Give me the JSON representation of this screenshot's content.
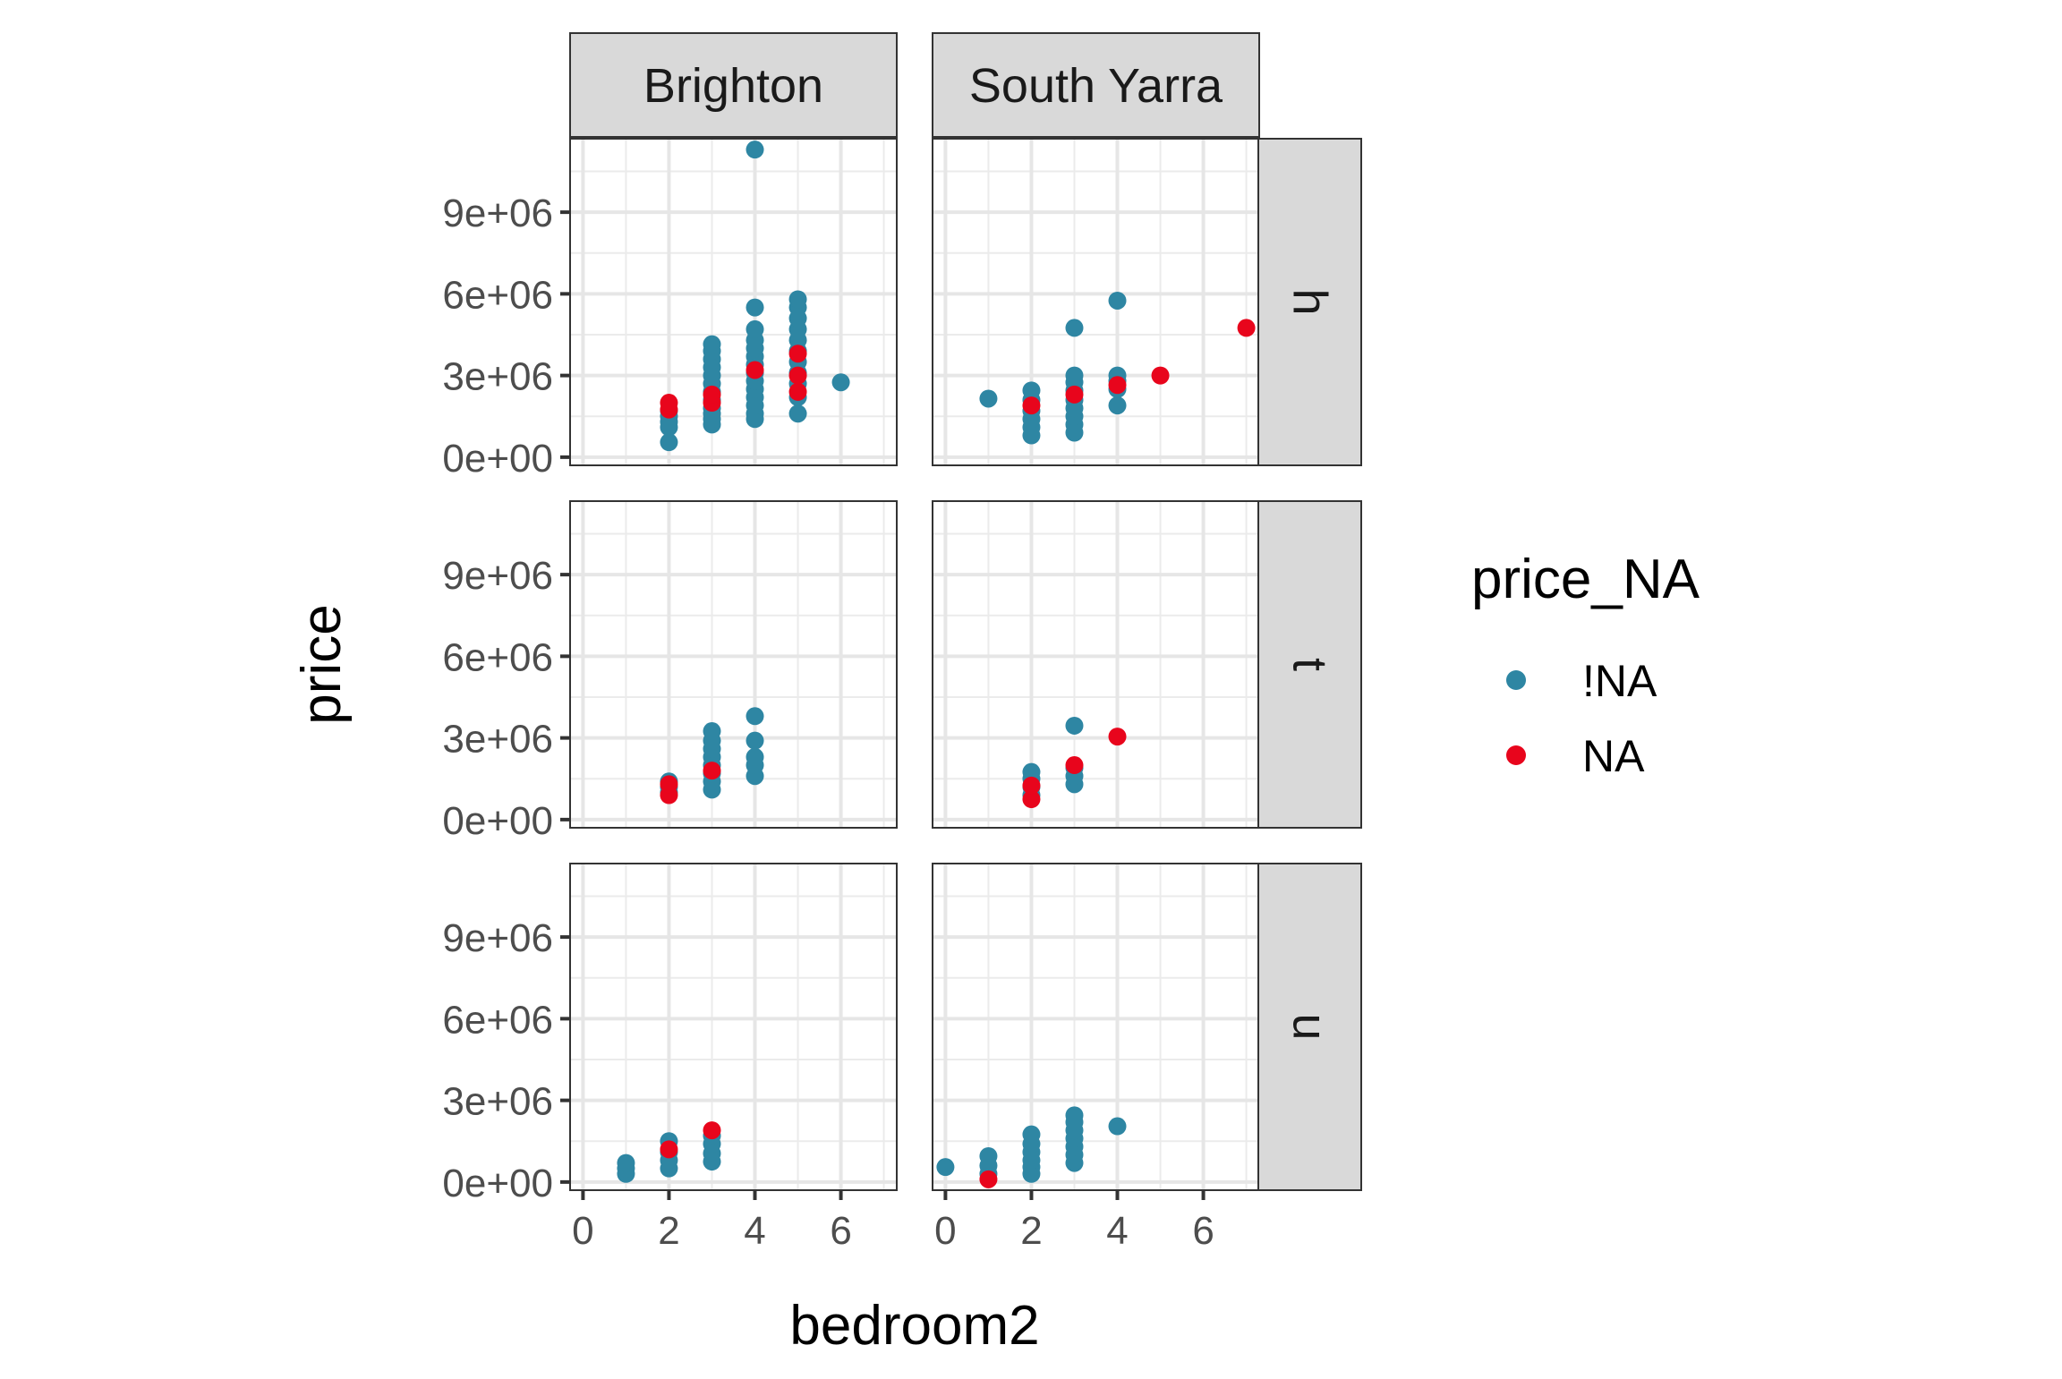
{
  "chart_data": {
    "type": "scatter",
    "title": "",
    "xlabel": "bedroom2",
    "ylabel": "price",
    "xlim": [
      -0.3,
      7.3
    ],
    "ylim": [
      -300000,
      11700000
    ],
    "x_ticks": [
      0,
      2,
      4,
      6
    ],
    "x_tick_labels": [
      "0",
      "2",
      "4",
      "6"
    ],
    "y_ticks": [
      0,
      3000000,
      6000000,
      9000000
    ],
    "y_tick_labels": [
      "0e+00",
      "3e+06",
      "6e+06",
      "9e+06"
    ],
    "grid": true,
    "facet_columns": [
      "Brighton",
      "South Yarra"
    ],
    "facet_rows": [
      "h",
      "t",
      "u"
    ],
    "legend": {
      "title": "price_NA",
      "position": "right",
      "entries": [
        {
          "label": "!NA",
          "color": "#2e86a3"
        },
        {
          "label": "NA",
          "color": "#e8051c"
        }
      ]
    },
    "series": [
      {
        "name": "!NA",
        "color": "#2e86a3"
      },
      {
        "name": "NA",
        "color": "#e8051c"
      }
    ],
    "panels": [
      {
        "col": "Brighton",
        "row": "h",
        "points": {
          "!NA": [
            [
              2,
              550000
            ],
            [
              2,
              1100000
            ],
            [
              2,
              1300000
            ],
            [
              2,
              1500000
            ],
            [
              2,
              1700000
            ],
            [
              3,
              1200000
            ],
            [
              3,
              1400000
            ],
            [
              3,
              1600000
            ],
            [
              3,
              1800000
            ],
            [
              3,
              2100000
            ],
            [
              3,
              2400000
            ],
            [
              3,
              2700000
            ],
            [
              3,
              3000000
            ],
            [
              3,
              3300000
            ],
            [
              3,
              3600000
            ],
            [
              3,
              3900000
            ],
            [
              3,
              4150000
            ],
            [
              4,
              1400000
            ],
            [
              4,
              1600000
            ],
            [
              4,
              1900000
            ],
            [
              4,
              2200000
            ],
            [
              4,
              2500000
            ],
            [
              4,
              2800000
            ],
            [
              4,
              3100000
            ],
            [
              4,
              3400000
            ],
            [
              4,
              3700000
            ],
            [
              4,
              4000000
            ],
            [
              4,
              4300000
            ],
            [
              4,
              4700000
            ],
            [
              4,
              5500000
            ],
            [
              4,
              11300000
            ],
            [
              5,
              1600000
            ],
            [
              5,
              2200000
            ],
            [
              5,
              2700000
            ],
            [
              5,
              3100000
            ],
            [
              5,
              3500000
            ],
            [
              5,
              3900000
            ],
            [
              5,
              4300000
            ],
            [
              5,
              4700000
            ],
            [
              5,
              5100000
            ],
            [
              5,
              5500000
            ],
            [
              5,
              5800000
            ],
            [
              6,
              2750000
            ]
          ],
          "NA": [
            [
              2,
              1750000
            ],
            [
              2,
              2000000
            ],
            [
              3,
              2000000
            ],
            [
              3,
              2300000
            ],
            [
              4,
              3200000
            ],
            [
              5,
              2400000
            ],
            [
              5,
              3000000
            ],
            [
              5,
              3800000
            ]
          ]
        }
      },
      {
        "col": "South Yarra",
        "row": "h",
        "points": {
          "!NA": [
            [
              1,
              2150000
            ],
            [
              2,
              800000
            ],
            [
              2,
              1100000
            ],
            [
              2,
              1400000
            ],
            [
              2,
              1700000
            ],
            [
              2,
              2100000
            ],
            [
              2,
              2450000
            ],
            [
              3,
              900000
            ],
            [
              3,
              1200000
            ],
            [
              3,
              1500000
            ],
            [
              3,
              1800000
            ],
            [
              3,
              2100000
            ],
            [
              3,
              2450000
            ],
            [
              3,
              2750000
            ],
            [
              3,
              3000000
            ],
            [
              3,
              4750000
            ],
            [
              4,
              1900000
            ],
            [
              4,
              2500000
            ],
            [
              4,
              2800000
            ],
            [
              4,
              3000000
            ],
            [
              4,
              5750000
            ]
          ],
          "NA": [
            [
              2,
              1900000
            ],
            [
              3,
              2300000
            ],
            [
              4,
              2650000
            ],
            [
              5,
              3000000
            ],
            [
              7,
              4750000
            ]
          ]
        }
      },
      {
        "col": "Brighton",
        "row": "t",
        "points": {
          "!NA": [
            [
              2,
              1000000
            ],
            [
              2,
              1200000
            ],
            [
              2,
              1400000
            ],
            [
              3,
              1100000
            ],
            [
              3,
              1400000
            ],
            [
              3,
              1700000
            ],
            [
              3,
              2000000
            ],
            [
              3,
              2300000
            ],
            [
              3,
              2600000
            ],
            [
              3,
              2900000
            ],
            [
              3,
              3250000
            ],
            [
              4,
              1600000
            ],
            [
              4,
              2000000
            ],
            [
              4,
              2300000
            ],
            [
              4,
              2900000
            ],
            [
              4,
              3800000
            ]
          ],
          "NA": [
            [
              2,
              900000
            ],
            [
              2,
              1300000
            ],
            [
              3,
              1800000
            ]
          ]
        }
      },
      {
        "col": "South Yarra",
        "row": "t",
        "points": {
          "!NA": [
            [
              2,
              900000
            ],
            [
              2,
              1200000
            ],
            [
              2,
              1500000
            ],
            [
              2,
              1750000
            ],
            [
              3,
              1300000
            ],
            [
              3,
              1600000
            ],
            [
              3,
              1900000
            ],
            [
              3,
              3450000
            ]
          ],
          "NA": [
            [
              2,
              750000
            ],
            [
              2,
              1250000
            ],
            [
              3,
              2000000
            ],
            [
              4,
              3050000
            ]
          ]
        }
      },
      {
        "col": "Brighton",
        "row": "u",
        "points": {
          "!NA": [
            [
              1,
              300000
            ],
            [
              1,
              500000
            ],
            [
              1,
              700000
            ],
            [
              2,
              500000
            ],
            [
              2,
              800000
            ],
            [
              2,
              1100000
            ],
            [
              2,
              1500000
            ],
            [
              3,
              750000
            ],
            [
              3,
              1050000
            ],
            [
              3,
              1400000
            ],
            [
              3,
              1700000
            ]
          ],
          "NA": [
            [
              2,
              1200000
            ],
            [
              3,
              1900000
            ]
          ]
        }
      },
      {
        "col": "South Yarra",
        "row": "u",
        "points": {
          "!NA": [
            [
              0,
              550000
            ],
            [
              1,
              300000
            ],
            [
              1,
              600000
            ],
            [
              1,
              950000
            ],
            [
              2,
              300000
            ],
            [
              2,
              550000
            ],
            [
              2,
              800000
            ],
            [
              2,
              1100000
            ],
            [
              2,
              1400000
            ],
            [
              2,
              1750000
            ],
            [
              3,
              700000
            ],
            [
              3,
              1000000
            ],
            [
              3,
              1300000
            ],
            [
              3,
              1600000
            ],
            [
              3,
              1900000
            ],
            [
              3,
              2200000
            ],
            [
              3,
              2450000
            ],
            [
              4,
              2050000
            ]
          ],
          "NA": [
            [
              1,
              100000
            ]
          ]
        }
      }
    ]
  }
}
